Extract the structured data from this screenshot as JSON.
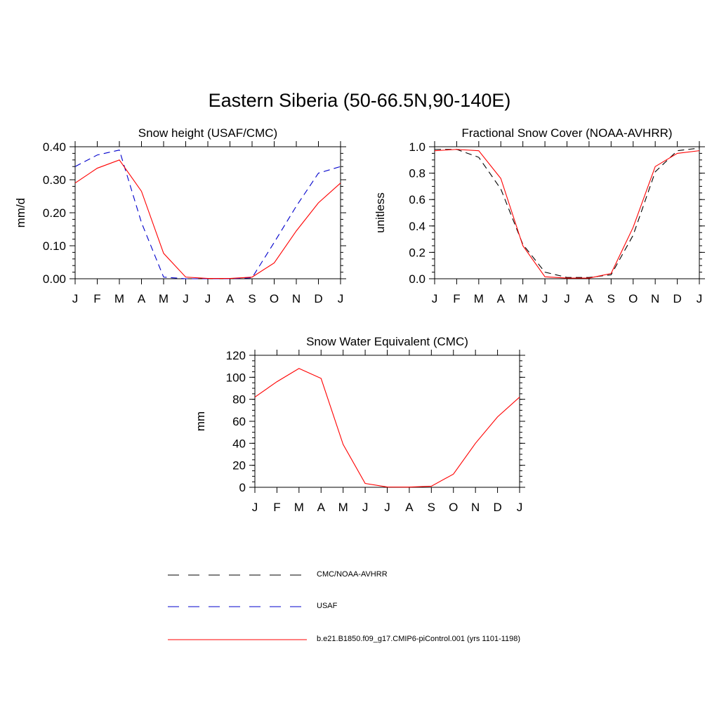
{
  "title": "Eastern Siberia (50-66.5N,90-140E)",
  "months": [
    "J",
    "F",
    "M",
    "A",
    "M",
    "J",
    "J",
    "A",
    "S",
    "O",
    "N",
    "D",
    "J"
  ],
  "legend": [
    {
      "label": "CMC/NOAA-AVHRR",
      "color": "#000000",
      "dash": "dashed"
    },
    {
      "label": "USAF",
      "color": "#0000cc",
      "dash": "dashed"
    },
    {
      "label": "b.e21.B1850.f09_g17.CMIP6-piControl.001 (yrs 1101-1198)",
      "color": "#ff0000",
      "dash": "solid"
    }
  ],
  "chart_data": [
    {
      "type": "line",
      "title": "Snow height (USAF/CMC)",
      "ylabel": "mm/d",
      "ylim": [
        0,
        0.4
      ],
      "yticks": [
        "0.00",
        "0.10",
        "0.20",
        "0.30",
        "0.40"
      ],
      "yminor_step": 0.02,
      "categories": [
        "J",
        "F",
        "M",
        "A",
        "M",
        "J",
        "J",
        "A",
        "S",
        "O",
        "N",
        "D",
        "J"
      ],
      "series": [
        {
          "name": "CMC/NOAA-AVHRR",
          "color": "#000000",
          "dash": "dashed",
          "values": [
            0,
            0,
            0,
            0,
            0,
            0,
            0,
            0,
            0,
            0,
            0,
            0,
            0
          ]
        },
        {
          "name": "USAF",
          "color": "#0000cc",
          "dash": "dashed",
          "values": [
            0.34,
            0.375,
            0.39,
            0.17,
            0.005,
            0,
            0,
            0,
            0.003,
            0.11,
            0.22,
            0.32,
            0.34
          ]
        },
        {
          "name": "b.e21.B1850.f09_g17.CMIP6-piControl.001 (yrs 1101-1198)",
          "color": "#ff0000",
          "dash": "solid",
          "values": [
            0.29,
            0.335,
            0.36,
            0.265,
            0.077,
            0.005,
            0.001,
            0.001,
            0.005,
            0.048,
            0.145,
            0.23,
            0.29
          ]
        }
      ]
    },
    {
      "type": "line",
      "title": "Fractional Snow Cover (NOAA-AVHRR)",
      "ylabel": "unitless",
      "ylim": [
        0,
        1.0
      ],
      "yticks": [
        "0.0",
        "0.2",
        "0.4",
        "0.6",
        "0.8",
        "1.0"
      ],
      "yminor_step": 0.05,
      "categories": [
        "J",
        "F",
        "M",
        "A",
        "M",
        "J",
        "J",
        "A",
        "S",
        "O",
        "N",
        "D",
        "J"
      ],
      "series": [
        {
          "name": "CMC/NOAA-AVHRR",
          "color": "#000000",
          "dash": "dashed",
          "values": [
            0.98,
            0.98,
            0.92,
            0.68,
            0.26,
            0.05,
            0.01,
            0.01,
            0.03,
            0.33,
            0.81,
            0.97,
            0.99
          ]
        },
        {
          "name": "b.e21.B1850.f09_g17.CMIP6-piControl.001 (yrs 1101-1198)",
          "color": "#ff0000",
          "dash": "solid",
          "values": [
            0.97,
            0.98,
            0.97,
            0.76,
            0.25,
            0.015,
            0.005,
            0.005,
            0.04,
            0.39,
            0.85,
            0.95,
            0.97
          ]
        }
      ]
    },
    {
      "type": "line",
      "title": "Snow Water Equivalent (CMC)",
      "ylabel": "mm",
      "ylim": [
        0,
        120
      ],
      "yticks": [
        "0",
        "20",
        "40",
        "60",
        "80",
        "100",
        "120"
      ],
      "yminor_step": 5,
      "categories": [
        "J",
        "F",
        "M",
        "A",
        "M",
        "J",
        "J",
        "A",
        "S",
        "O",
        "N",
        "D",
        "J"
      ],
      "series": [
        {
          "name": "CMC/NOAA-AVHRR",
          "color": "#000000",
          "dash": "dashed",
          "values": [
            0,
            0,
            0,
            0,
            0,
            0,
            0,
            0,
            0,
            0,
            0,
            0,
            0
          ]
        },
        {
          "name": "b.e21.B1850.f09_g17.CMIP6-piControl.001 (yrs 1101-1198)",
          "color": "#ff0000",
          "dash": "solid",
          "values": [
            82,
            96,
            108,
            99,
            39,
            3.5,
            0.3,
            0.2,
            1,
            12,
            40,
            64,
            82
          ]
        }
      ]
    }
  ]
}
